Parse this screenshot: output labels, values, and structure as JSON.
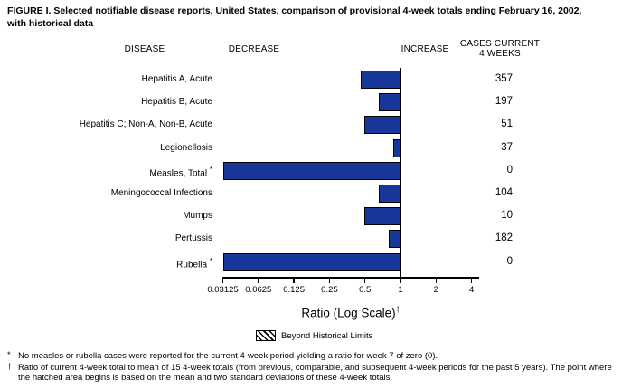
{
  "title": "FIGURE I. Selected notifiable disease reports, United States, comparison of provisional 4-week totals ending February 16, 2002, with historical data",
  "columns": {
    "disease": "DISEASE",
    "decrease": "DECREASE",
    "increase": "INCREASE",
    "cases_line1": "CASES CURRENT",
    "cases_line2": "4 WEEKS"
  },
  "chart_data": {
    "type": "bar",
    "orientation": "horizontal",
    "x_scale": "log2",
    "xlabel": "Ratio (Log Scale)",
    "xlabel_superscript": "†",
    "x_ticks": [
      "0.03125",
      "0.0625",
      "0.125",
      "0.25",
      "0.5",
      "1",
      "2",
      "4"
    ],
    "x_tick_values": [
      0.03125,
      0.0625,
      0.125,
      0.25,
      0.5,
      1,
      2,
      4
    ],
    "xlim": [
      0.03125,
      4
    ],
    "baseline_ratio": 1,
    "bar_color": "#17379b",
    "legend": {
      "label": "Beyond Historical Limits",
      "swatch": "diagonal-hatch",
      "position": "below-axis"
    },
    "rows": [
      {
        "disease": "Hepatitis A, Acute",
        "ratio": 0.46,
        "cases": "357",
        "marker": ""
      },
      {
        "disease": "Hepatitis B, Acute",
        "ratio": 0.65,
        "cases": "197",
        "marker": ""
      },
      {
        "disease": "Hepatitis C; Non-A, Non-B, Acute",
        "ratio": 0.49,
        "cases": "51",
        "marker": ""
      },
      {
        "disease": "Legionellosis",
        "ratio": 0.87,
        "cases": "37",
        "marker": ""
      },
      {
        "disease": "Measles, Total",
        "ratio": 0,
        "cases": "0",
        "marker": "*"
      },
      {
        "disease": "Meningococcal Infections",
        "ratio": 0.65,
        "cases": "104",
        "marker": ""
      },
      {
        "disease": "Mumps",
        "ratio": 0.49,
        "cases": "10",
        "marker": ""
      },
      {
        "disease": "Pertussis",
        "ratio": 0.79,
        "cases": "182",
        "marker": ""
      },
      {
        "disease": "Rubella",
        "ratio": 0,
        "cases": "0",
        "marker": "*"
      }
    ]
  },
  "footnotes": [
    {
      "marker": "*",
      "text": "No measles or rubella cases were reported for the current 4-week period yielding a ratio for week 7 of zero (0)."
    },
    {
      "marker": "†",
      "text": "Ratio of current 4-week total to mean of 15 4-week totals (from previous, comparable, and subsequent 4-week periods for the past 5 years). The point where the hatched area begins is based on the mean and two standard deviations of these 4-week totals."
    }
  ]
}
